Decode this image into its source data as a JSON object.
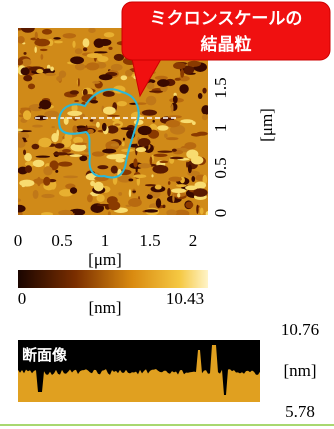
{
  "callout": {
    "lines": [
      "ミクロンスケールの",
      "結晶粒"
    ]
  },
  "image": {
    "x_ticks": [
      "0",
      "0.5",
      "1",
      "1.5",
      "2"
    ],
    "x_label": "[μm]",
    "y_ticks": [
      "0",
      "0.5",
      "1",
      "1.5"
    ],
    "y_label": "[μm]"
  },
  "colorbar": {
    "min": "0",
    "unit": "[nm]",
    "max": "10.43"
  },
  "profile": {
    "label": "断面像",
    "max": "10.76",
    "unit": "[nm]",
    "min": "5.78"
  }
}
